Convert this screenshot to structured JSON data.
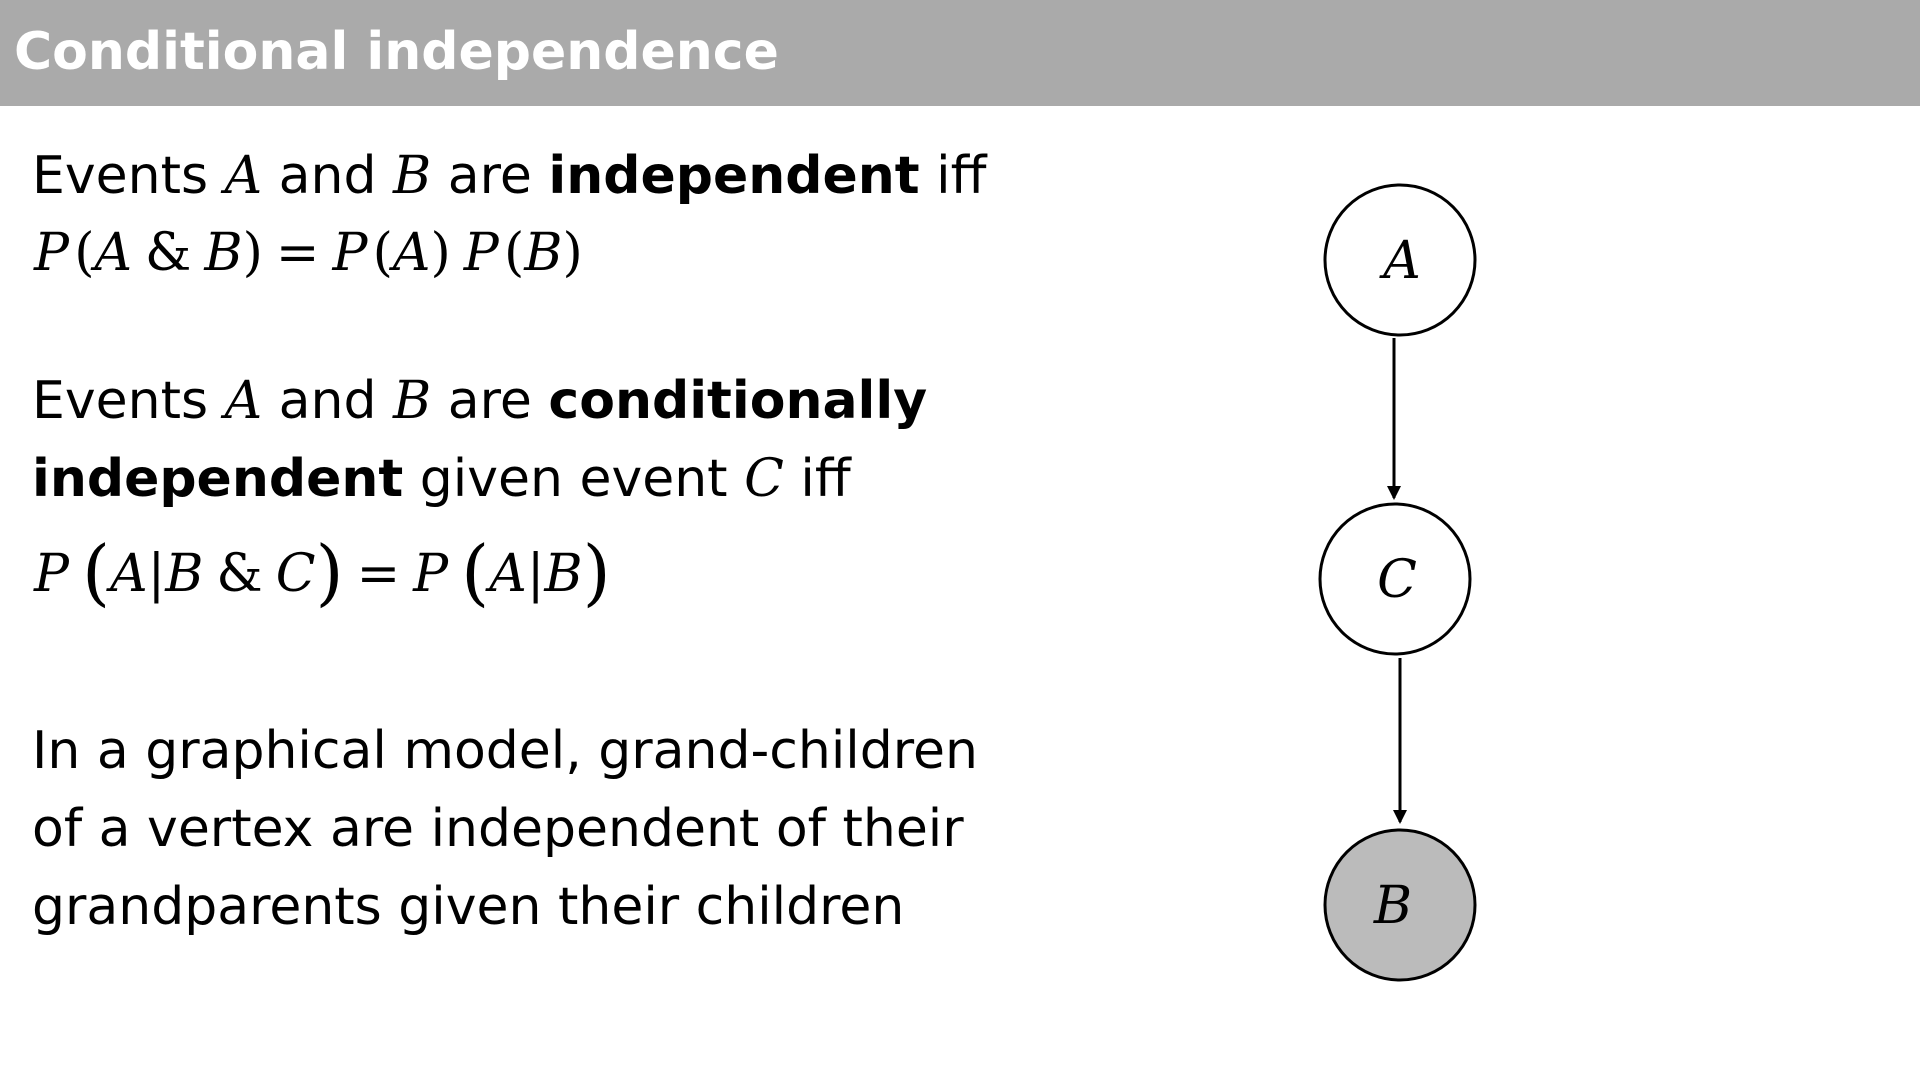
{
  "title": "Conditional independence",
  "para1": {
    "t1": "Events ",
    "a": "A",
    "t2": " and ",
    "b": "B",
    "t3": " are ",
    "bold": "independent",
    "t4": " iff"
  },
  "formula1": {
    "p1": "P",
    "lp1": "(",
    "a": "A",
    "amp": "&",
    "b": "B",
    "rp1": ")",
    "eq": "=",
    "p2": "P",
    "lp2": "(",
    "a2": "A",
    "rp2": ")",
    "p3": "P",
    "lp3": "(",
    "b2": "B",
    "rp3": ")"
  },
  "para2": {
    "t1": "Events ",
    "a": "A",
    "t2": " and ",
    "b": "B",
    "t3": " are ",
    "bold1": "conditionally",
    "bold2": "independent",
    "t4": " given event ",
    "c": "C",
    "t5": " iff"
  },
  "formula2": {
    "p1": "P",
    "lp1": "(",
    "a": "A",
    "bar1": "|",
    "b": "B",
    "amp": "&",
    "c": "C",
    "rp1": ")",
    "eq": "=",
    "p2": "P",
    "lp2": "(",
    "a2": "A",
    "bar2": "|",
    "b2": "B",
    "rp2": ")"
  },
  "para3": {
    "line1": "In a graphical model, grand-children",
    "line2": "of a vertex are independent of their",
    "line3": "grandparents given their children"
  },
  "graph": {
    "nodes": [
      {
        "label": "A",
        "observed": false
      },
      {
        "label": "C",
        "observed": false
      },
      {
        "label": "B",
        "observed": true
      }
    ],
    "edges": [
      {
        "from": "A",
        "to": "C"
      },
      {
        "from": "C",
        "to": "B"
      }
    ],
    "observed_fill": "#bbbbbb",
    "node_fill": "#ffffff"
  }
}
